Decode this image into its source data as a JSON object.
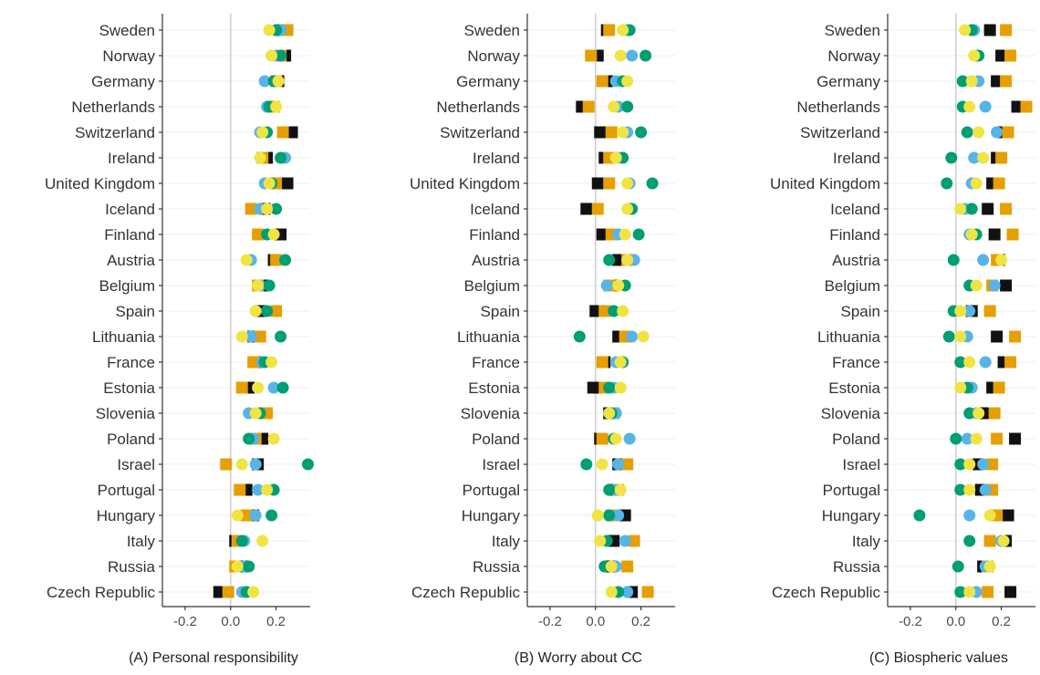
{
  "chart_data": {
    "type": "scatter",
    "countries": [
      "Sweden",
      "Norway",
      "Germany",
      "Netherlands",
      "Switzerland",
      "Ireland",
      "United Kingdom",
      "Iceland",
      "Finland",
      "Austria",
      "Belgium",
      "Spain",
      "Lithuania",
      "France",
      "Estonia",
      "Slovenia",
      "Poland",
      "Israel",
      "Portugal",
      "Hungary",
      "Italy",
      "Russia",
      "Czech Republic"
    ],
    "xlim": [
      -0.3,
      0.35
    ],
    "xticks": [
      -0.2,
      0.0,
      0.2
    ],
    "xtick_labels": [
      "-0.2",
      "0.0",
      "0.2"
    ],
    "marker_colors": {
      "black": "#111111",
      "orange": "#e69f00",
      "blue": "#56b4e9",
      "green": "#009e73",
      "yellow": "#f0e442"
    },
    "series_markers": {
      "black": "square",
      "orange": "square",
      "blue": "circle",
      "green": "circle",
      "yellow": "circle"
    },
    "panels": [
      {
        "caption": "(A) Personal responsibility",
        "series": {
          "black": [
            0.22,
            0.24,
            0.21,
            0.18,
            0.27,
            0.16,
            0.25,
            0.15,
            0.22,
            0.19,
            0.14,
            0.13,
            0.1,
            0.11,
            0.08,
            0.15,
            0.14,
            0.12,
            0.07,
            0.1,
            0.02,
            0.05,
            -0.05
          ],
          "orange": [
            0.25,
            0.22,
            0.2,
            0.19,
            0.23,
            0.14,
            0.2,
            0.09,
            0.12,
            0.2,
            0.12,
            0.2,
            0.13,
            0.1,
            0.05,
            0.16,
            0.11,
            -0.02,
            0.04,
            0.07,
            0.03,
            0.02,
            -0.01
          ],
          "blue": [
            0.22,
            0.2,
            0.15,
            0.16,
            0.13,
            0.24,
            0.15,
            0.13,
            0.16,
            0.09,
            0.13,
            0.16,
            0.09,
            0.14,
            0.19,
            0.08,
            0.1,
            0.11,
            0.12,
            0.11,
            0.06,
            0.06,
            0.05
          ],
          "green": [
            0.2,
            0.22,
            0.19,
            0.17,
            0.16,
            0.22,
            0.18,
            0.2,
            0.16,
            0.24,
            0.17,
            0.16,
            0.22,
            0.15,
            0.23,
            0.13,
            0.08,
            0.34,
            0.19,
            0.18,
            0.05,
            0.08,
            0.07
          ],
          "yellow": [
            0.17,
            0.18,
            0.21,
            0.2,
            0.14,
            0.13,
            0.17,
            0.16,
            0.19,
            0.07,
            0.12,
            0.11,
            0.05,
            0.18,
            0.12,
            0.11,
            0.19,
            0.05,
            0.16,
            0.03,
            0.14,
            0.03,
            0.1
          ]
        }
      },
      {
        "caption": "(B) Worry about CC",
        "series": {
          "black": [
            0.05,
            0.01,
            0.05,
            -0.06,
            0.02,
            0.04,
            0.01,
            -0.04,
            0.03,
            0.1,
            0.08,
            0.0,
            0.1,
            0.04,
            -0.01,
            0.06,
            0.02,
            0.1,
            0.08,
            0.13,
            0.08,
            0.07,
            0.16
          ],
          "orange": [
            0.06,
            -0.02,
            0.03,
            -0.03,
            0.07,
            0.06,
            0.06,
            0.01,
            0.07,
            0.14,
            0.06,
            0.04,
            0.13,
            0.03,
            0.04,
            0.08,
            0.03,
            0.14,
            0.1,
            0.07,
            0.17,
            0.14,
            0.23
          ],
          "blue": [
            0.14,
            0.16,
            0.09,
            0.1,
            0.14,
            0.1,
            0.15,
            0.15,
            0.1,
            0.17,
            0.05,
            0.08,
            0.16,
            0.09,
            0.08,
            0.09,
            0.15,
            0.1,
            0.09,
            0.1,
            0.13,
            0.09,
            0.14
          ],
          "green": [
            0.15,
            0.22,
            0.12,
            0.14,
            0.2,
            0.12,
            0.25,
            0.16,
            0.19,
            0.06,
            0.13,
            0.08,
            -0.07,
            0.12,
            0.06,
            0.07,
            0.08,
            -0.04,
            0.06,
            0.06,
            0.05,
            0.04,
            0.1
          ],
          "yellow": [
            0.12,
            0.11,
            0.14,
            0.08,
            0.12,
            0.09,
            0.14,
            0.14,
            0.13,
            0.14,
            0.1,
            0.12,
            0.21,
            0.11,
            0.11,
            0.06,
            0.09,
            0.03,
            0.11,
            0.01,
            0.02,
            0.07,
            0.07
          ]
        }
      },
      {
        "caption": "(C) Biospheric values",
        "series": {
          "black": [
            0.15,
            0.2,
            0.18,
            0.27,
            0.21,
            0.18,
            0.16,
            0.14,
            0.17,
            0.19,
            0.22,
            0.07,
            0.18,
            0.21,
            0.16,
            0.13,
            0.26,
            0.1,
            0.11,
            0.23,
            0.22,
            0.12,
            0.24
          ],
          "orange": [
            0.22,
            0.24,
            0.22,
            0.31,
            0.23,
            0.2,
            0.19,
            0.22,
            0.25,
            0.18,
            0.16,
            0.15,
            0.26,
            0.24,
            0.19,
            0.17,
            0.18,
            0.16,
            0.16,
            0.18,
            0.15,
            0.14,
            0.14
          ],
          "blue": [
            0.08,
            0.09,
            0.1,
            0.13,
            0.18,
            0.08,
            0.07,
            0.04,
            0.06,
            0.12,
            0.17,
            0.06,
            0.05,
            0.13,
            0.07,
            0.09,
            0.05,
            0.12,
            0.13,
            0.06,
            0.2,
            0.13,
            0.09
          ],
          "green": [
            0.07,
            0.1,
            0.03,
            0.03,
            0.05,
            -0.02,
            -0.04,
            0.07,
            0.09,
            -0.01,
            0.06,
            -0.01,
            -0.03,
            0.02,
            0.05,
            0.06,
            0.0,
            0.02,
            0.02,
            -0.16,
            0.06,
            0.01,
            0.02
          ],
          "yellow": [
            0.04,
            0.08,
            0.07,
            0.06,
            0.1,
            0.12,
            0.09,
            0.02,
            0.07,
            0.2,
            0.09,
            0.02,
            0.02,
            0.06,
            0.02,
            0.1,
            0.09,
            0.06,
            0.06,
            0.15,
            0.21,
            0.15,
            0.06
          ]
        }
      }
    ]
  }
}
